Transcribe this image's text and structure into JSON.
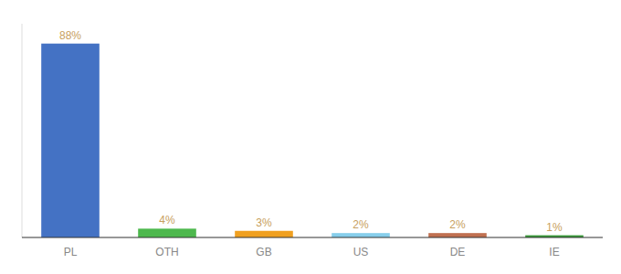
{
  "chart_data": {
    "type": "bar",
    "categories": [
      "PL",
      "OTH",
      "GB",
      "US",
      "DE",
      "IE"
    ],
    "values": [
      88,
      4,
      3,
      2,
      2,
      1
    ],
    "value_labels": [
      "88%",
      "4%",
      "3%",
      "2%",
      "2%",
      "1%"
    ],
    "colors": [
      "#4472c4",
      "#4db84d",
      "#f0a020",
      "#87ceeb",
      "#c07050",
      "#3a9a3a"
    ],
    "ylim": [
      0,
      97
    ],
    "data_labels": true,
    "tick_labels": "x",
    "grid": false
  }
}
